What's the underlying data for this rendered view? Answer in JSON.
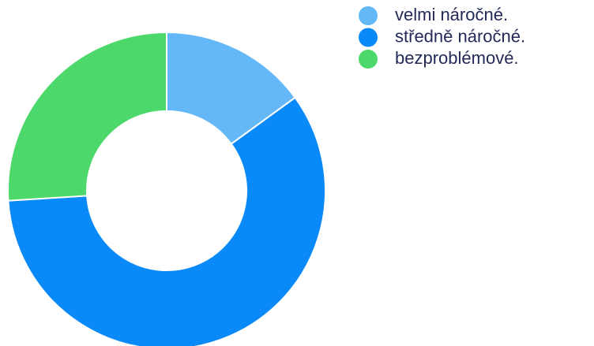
{
  "chart_data": {
    "type": "donut",
    "categories": [
      "velmi náročné.",
      "středně náročné.",
      "bezproblémové."
    ],
    "values": [
      15,
      59,
      26
    ],
    "colors": [
      "#64b8f7",
      "#0a8af8",
      "#4cd86a"
    ],
    "legend": "top-right"
  }
}
